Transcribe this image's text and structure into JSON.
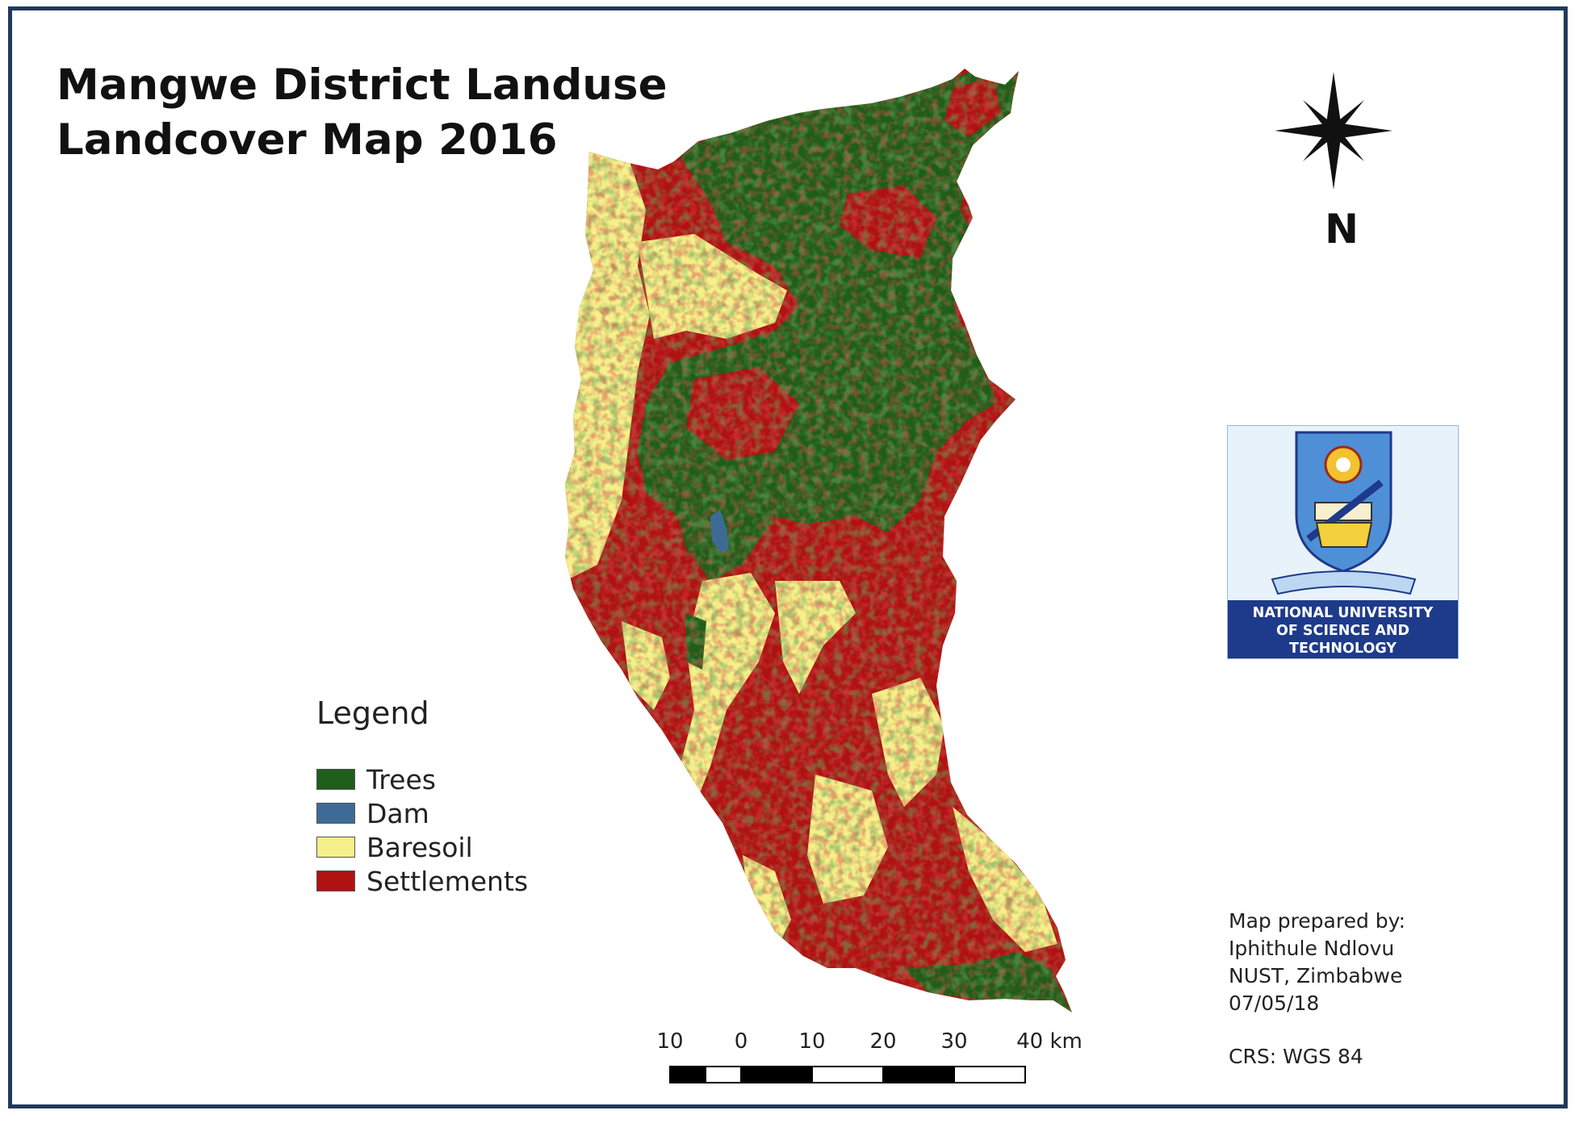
{
  "title": {
    "line1": "Mangwe District Landuse",
    "line2": "Landcover Map 2016"
  },
  "north_arrow": {
    "label": "N",
    "icon": "compass-star-icon"
  },
  "logo": {
    "icon": "university-crest-icon",
    "line1": "NATIONAL UNIVERSITY",
    "line2": "OF SCIENCE AND",
    "line3": "TECHNOLOGY"
  },
  "legend": {
    "title": "Legend",
    "items": [
      {
        "label": "Trees",
        "color": "#1f5e1a"
      },
      {
        "label": "Dam",
        "color": "#3e6b96"
      },
      {
        "label": "Baresoil",
        "color": "#f6f08a"
      },
      {
        "label": "Settlements",
        "color": "#b01212"
      }
    ]
  },
  "credits": {
    "line1": "Map prepared by:",
    "line2": "Iphithule Ndlovu",
    "line3": "NUST, Zimbabwe",
    "line4": "07/05/18",
    "crs": "CRS: WGS 84"
  },
  "scale_bar": {
    "labels": [
      "10",
      "0",
      "10",
      "20",
      "30",
      "40 km"
    ]
  },
  "colors": {
    "trees": "#1f5e1a",
    "settlements": "#b01212",
    "baresoil": "#f6f08a",
    "dam": "#3e6b96",
    "frame": "#1f3a5c"
  }
}
